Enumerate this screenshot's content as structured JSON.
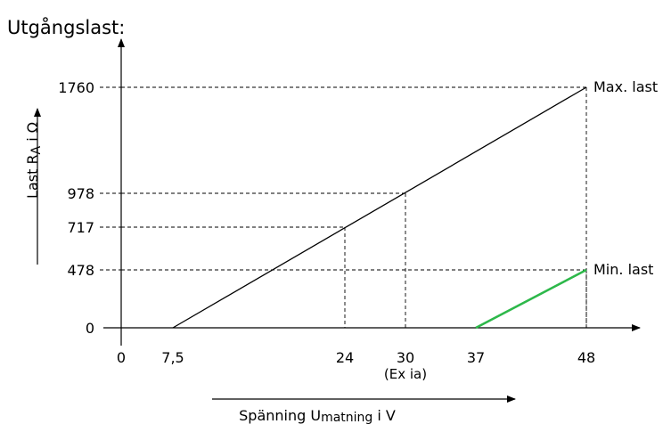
{
  "chart_data": {
    "type": "line",
    "title": "Utgångslast:",
    "ylabel": {
      "text": "Last R",
      "sub": "A",
      "tail": " i Ω"
    },
    "xlabel": {
      "text": "Spänning U",
      "sub": "matning",
      "tail": " i V"
    },
    "xlim": [
      0,
      48
    ],
    "ylim": [
      0,
      1760
    ],
    "x_ticks": [
      {
        "value": 0,
        "label": "0"
      },
      {
        "value": 7.5,
        "label": "7,5"
      },
      {
        "value": 24,
        "label": "24"
      },
      {
        "value": 30,
        "label": "30"
      },
      {
        "value": 37,
        "label": "37"
      },
      {
        "value": 48,
        "label": "48"
      }
    ],
    "x_tick_note": "(Ex ia)",
    "y_ticks": [
      {
        "value": 0,
        "label": "0"
      },
      {
        "value": 478,
        "label": "478"
      },
      {
        "value": 717,
        "label": "717"
      },
      {
        "value": 978,
        "label": "978"
      },
      {
        "value": 1760,
        "label": "1760"
      }
    ],
    "series": [
      {
        "name": "Max. last",
        "color": "#000000",
        "points": [
          [
            7.5,
            0
          ],
          [
            48,
            1760
          ]
        ]
      },
      {
        "name": "Min. last",
        "color": "#2db84a",
        "points": [
          [
            37,
            0
          ],
          [
            48,
            478
          ]
        ]
      }
    ],
    "reference_lines": [
      {
        "x": 24,
        "y": 717
      },
      {
        "x": 30,
        "y": 978
      },
      {
        "x": 48,
        "y": 1760
      },
      {
        "x": 48,
        "y": 478
      }
    ],
    "grid": false
  }
}
